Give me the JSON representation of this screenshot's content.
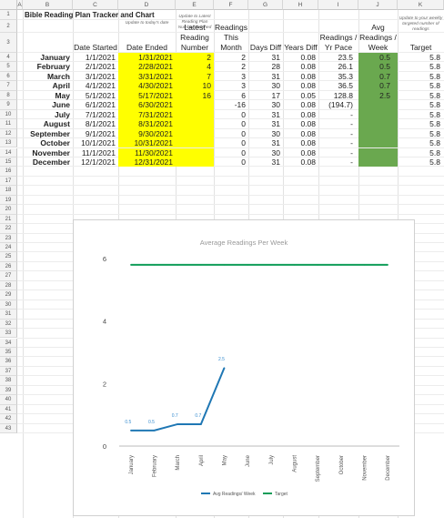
{
  "columns": [
    "A",
    "B",
    "C",
    "D",
    "E",
    "F",
    "G",
    "H",
    "I",
    "J",
    "K"
  ],
  "rows": [
    "1",
    "2",
    "3",
    "4",
    "5",
    "6",
    "7",
    "8",
    "9",
    "10",
    "11",
    "12",
    "13",
    "14",
    "15",
    "16",
    "17",
    "18",
    "19",
    "20",
    "21",
    "22",
    "23",
    "24",
    "25",
    "26",
    "27",
    "28",
    "29",
    "30",
    "31",
    "32",
    "33",
    "34",
    "35",
    "36",
    "37",
    "38",
    "39",
    "40",
    "41",
    "42",
    "43"
  ],
  "title": "Bible Reading Plan Tracker and Chart",
  "notes": {
    "d": "Update to today's date",
    "e": "Update to Latest Reading Plan Number Finished",
    "k": "Update to your weekly targeted number of readings"
  },
  "headers": {
    "c": "Date Started",
    "d": "Date Ended",
    "e": "Latest Reading Number",
    "f": "Readings This Month",
    "g": "Days Diff",
    "h": "Years Diff",
    "i": "Readings / Yr Pace",
    "j": "Avg Readings / Week",
    "k": "Target"
  },
  "months": [
    {
      "name": "January",
      "start": "1/1/2021",
      "end": "1/31/2021",
      "latest": "2",
      "this_month": "2",
      "days": "31",
      "years": "0.08",
      "pace": "23.5",
      "avg": "0.5",
      "target": "5.8"
    },
    {
      "name": "February",
      "start": "2/1/2021",
      "end": "2/28/2021",
      "latest": "4",
      "this_month": "2",
      "days": "28",
      "years": "0.08",
      "pace": "26.1",
      "avg": "0.5",
      "target": "5.8"
    },
    {
      "name": "March",
      "start": "3/1/2021",
      "end": "3/31/2021",
      "latest": "7",
      "this_month": "3",
      "days": "31",
      "years": "0.08",
      "pace": "35.3",
      "avg": "0.7",
      "target": "5.8"
    },
    {
      "name": "April",
      "start": "4/1/2021",
      "end": "4/30/2021",
      "latest": "10",
      "this_month": "3",
      "days": "30",
      "years": "0.08",
      "pace": "36.5",
      "avg": "0.7",
      "target": "5.8"
    },
    {
      "name": "May",
      "start": "5/1/2021",
      "end": "5/17/2021",
      "latest": "16",
      "this_month": "6",
      "days": "17",
      "years": "0.05",
      "pace": "128.8",
      "avg": "2.5",
      "target": "5.8"
    },
    {
      "name": "June",
      "start": "6/1/2021",
      "end": "6/30/2021",
      "latest": "",
      "this_month": "-16",
      "days": "30",
      "years": "0.08",
      "pace": "(194.7)",
      "avg": "",
      "target": "5.8"
    },
    {
      "name": "July",
      "start": "7/1/2021",
      "end": "7/31/2021",
      "latest": "",
      "this_month": "0",
      "days": "31",
      "years": "0.08",
      "pace": "-",
      "avg": "",
      "target": "5.8"
    },
    {
      "name": "August",
      "start": "8/1/2021",
      "end": "8/31/2021",
      "latest": "",
      "this_month": "0",
      "days": "31",
      "years": "0.08",
      "pace": "-",
      "avg": "",
      "target": "5.8"
    },
    {
      "name": "September",
      "start": "9/1/2021",
      "end": "9/30/2021",
      "latest": "",
      "this_month": "0",
      "days": "30",
      "years": "0.08",
      "pace": "-",
      "avg": "",
      "target": "5.8"
    },
    {
      "name": "October",
      "start": "10/1/2021",
      "end": "10/31/2021",
      "latest": "",
      "this_month": "0",
      "days": "31",
      "years": "0.08",
      "pace": "-",
      "avg": "",
      "target": "5.8"
    },
    {
      "name": "November",
      "start": "11/1/2021",
      "end": "11/30/2021",
      "latest": "",
      "this_month": "0",
      "days": "30",
      "years": "0.08",
      "pace": "-",
      "avg": "",
      "target": "5.8"
    },
    {
      "name": "December",
      "start": "12/1/2021",
      "end": "12/31/2021",
      "latest": "",
      "this_month": "0",
      "days": "31",
      "years": "0.08",
      "pace": "-",
      "avg": "",
      "target": "5.8"
    }
  ],
  "colors": {
    "yellow": "#ffff00",
    "green": "#6aa84f",
    "avg_line": "#1f77b4",
    "target_line": "#0f9d58"
  },
  "chart_data": {
    "type": "line",
    "title": "Average Readings Per Week",
    "categories": [
      "January",
      "February",
      "March",
      "April",
      "May",
      "June",
      "July",
      "August",
      "September",
      "October",
      "November",
      "December"
    ],
    "series": [
      {
        "name": "Avg Readings/ Week",
        "values": [
          0.5,
          0.5,
          0.7,
          0.7,
          2.5,
          null,
          null,
          null,
          null,
          null,
          null,
          null
        ],
        "labels": [
          "0.5",
          "0.5",
          "0.7",
          "0.7",
          "2.5"
        ]
      },
      {
        "name": "Target",
        "values": [
          5.8,
          5.8,
          5.8,
          5.8,
          5.8,
          5.8,
          5.8,
          5.8,
          5.8,
          5.8,
          5.8,
          5.8
        ]
      }
    ],
    "ylim": [
      0,
      6
    ],
    "yticks": [
      "0",
      "2",
      "4",
      "6"
    ],
    "legend": "bottom",
    "grid": false
  }
}
